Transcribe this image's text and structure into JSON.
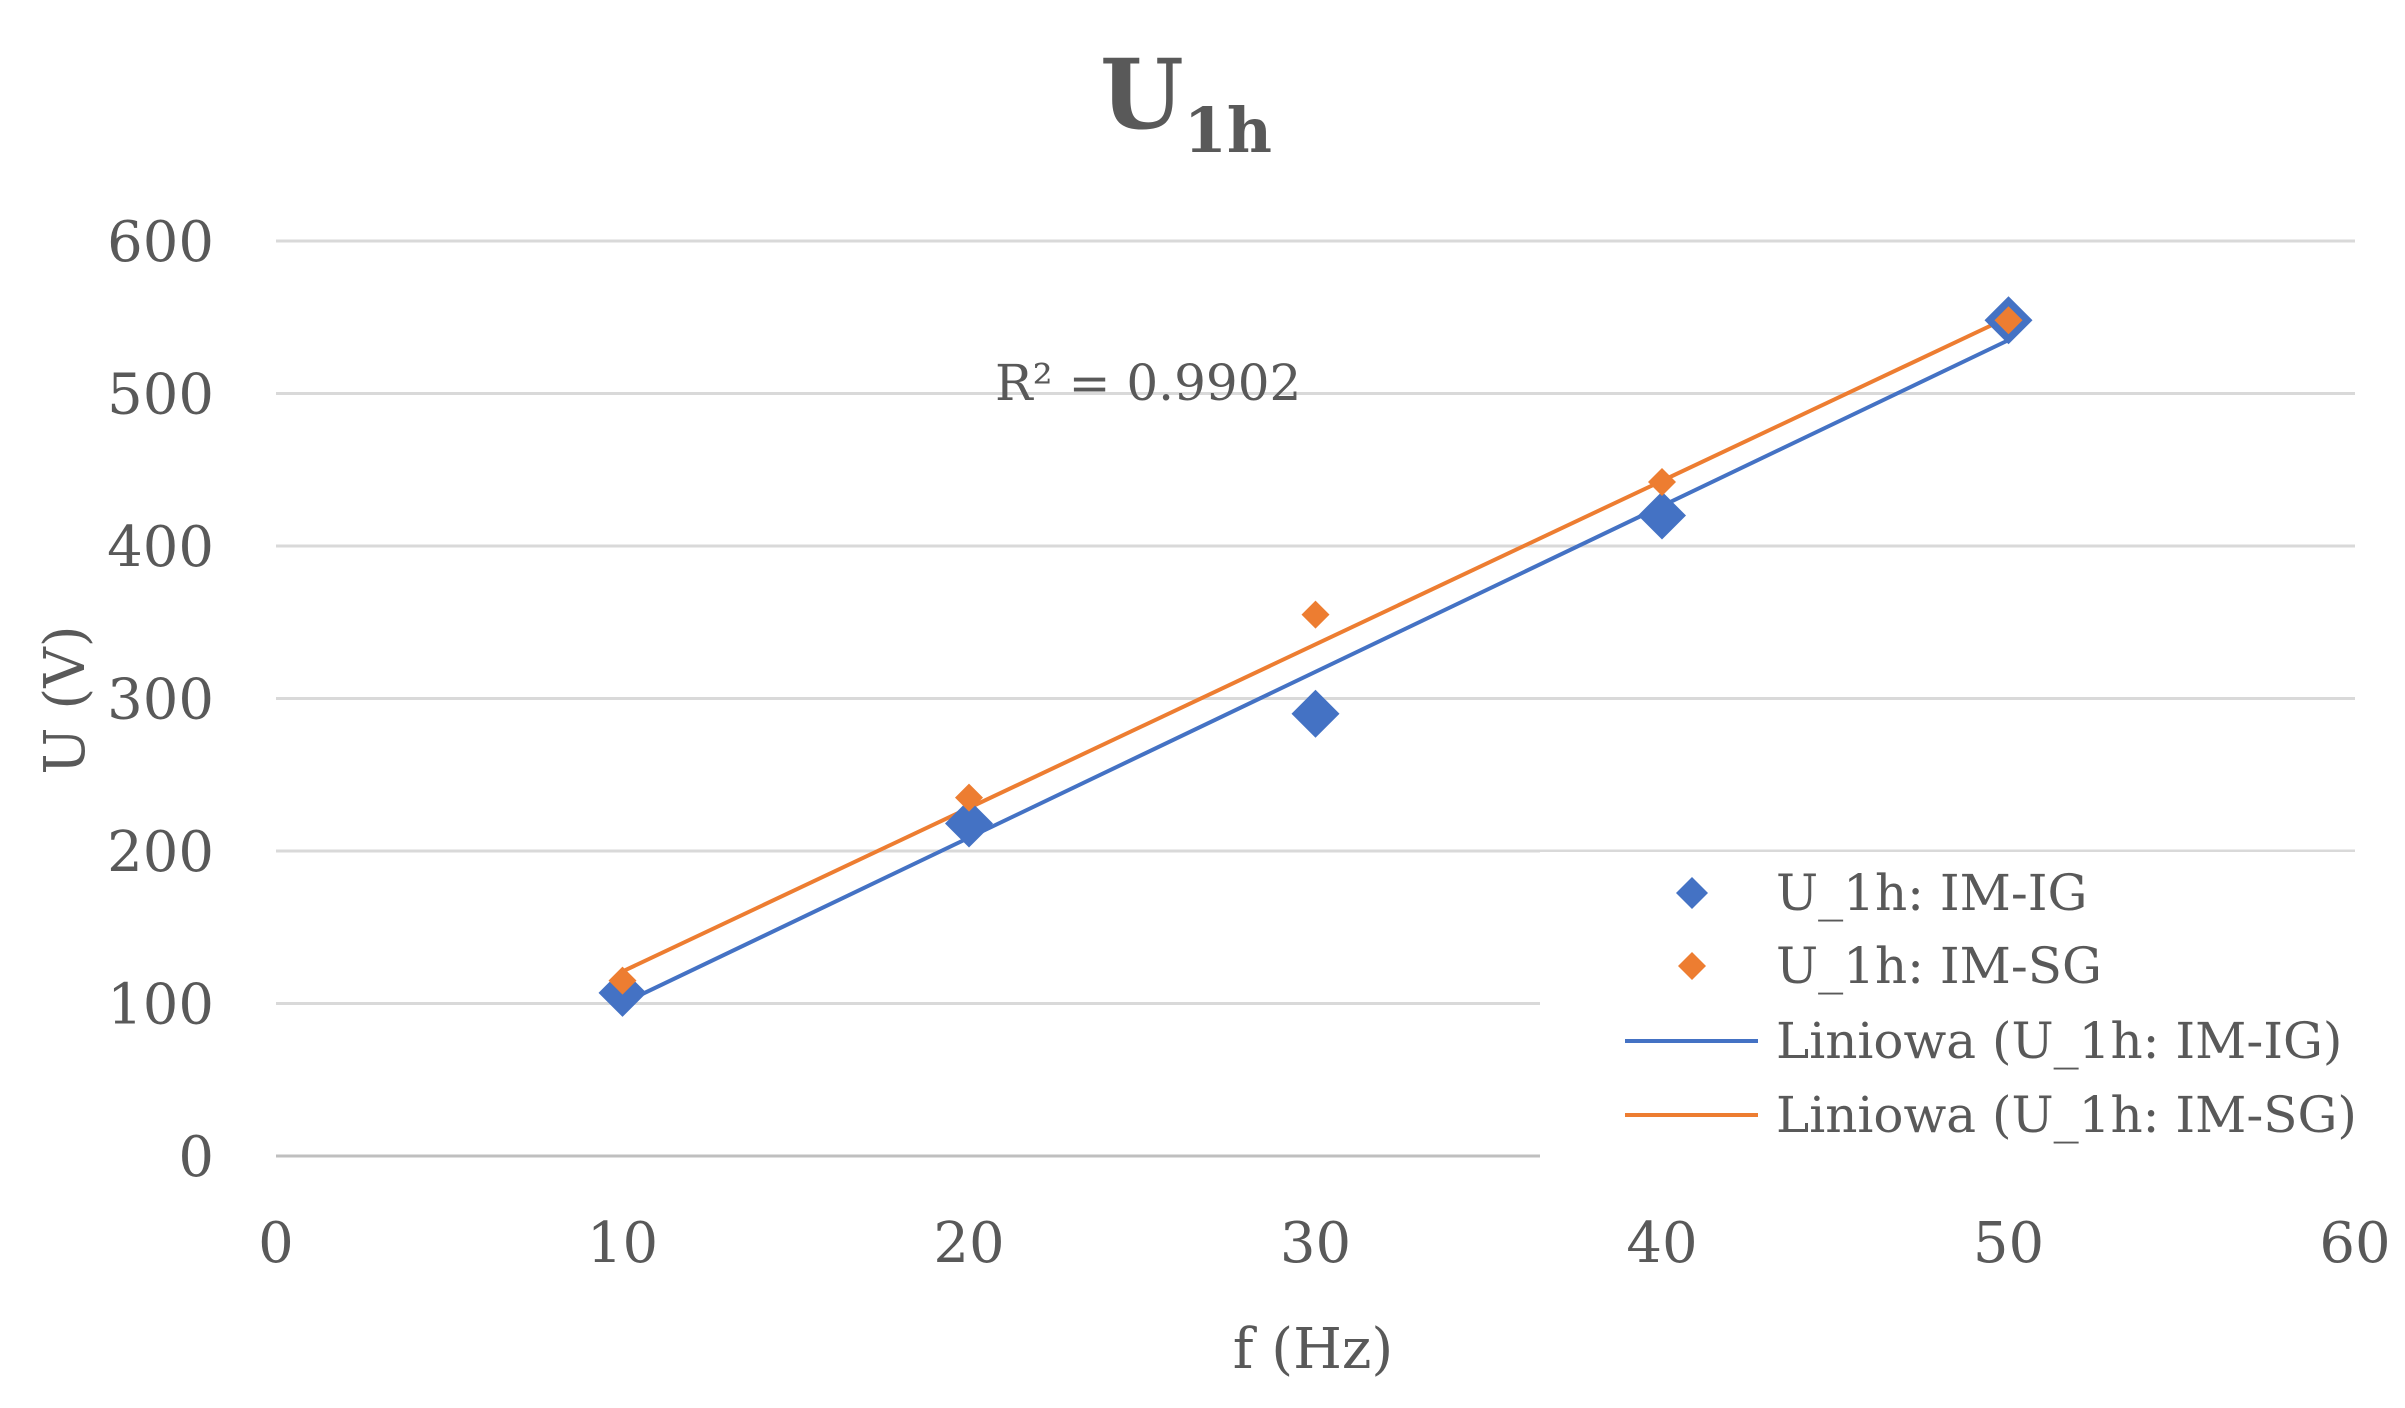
{
  "chart_data": {
    "type": "scatter",
    "title": "U",
    "title_subscript": "1h",
    "xlabel": "f (Hz)",
    "ylabel": "U (V)",
    "xlim": [
      0,
      60
    ],
    "ylim": [
      0,
      600
    ],
    "xticks": [
      0,
      10,
      20,
      30,
      40,
      50,
      60
    ],
    "yticks": [
      0,
      100,
      200,
      300,
      400,
      500,
      600
    ],
    "grid": "horizontal",
    "legend_position": "bottom-right",
    "annotation": "R² = 0.9902",
    "series": [
      {
        "name": "U_1h: IM-IG",
        "marker": "diamond-large",
        "color": "#4472C4",
        "x": [
          10,
          20,
          30,
          40,
          50
        ],
        "y": [
          107,
          218,
          290,
          420,
          548
        ]
      },
      {
        "name": "U_1h: IM-SG",
        "marker": "diamond-small",
        "color": "#ED7D31",
        "x": [
          10,
          20,
          30,
          40,
          50
        ],
        "y": [
          115,
          235,
          355,
          442,
          548
        ]
      }
    ],
    "trendlines": [
      {
        "name": "Liniowa (U_1h: IM-IG)",
        "color": "#4472C4",
        "x": [
          10,
          50
        ],
        "y": [
          100,
          535
        ]
      },
      {
        "name": "Liniowa (U_1h: IM-SG)",
        "color": "#ED7D31",
        "x": [
          10,
          50
        ],
        "y": [
          121,
          550
        ]
      }
    ]
  }
}
